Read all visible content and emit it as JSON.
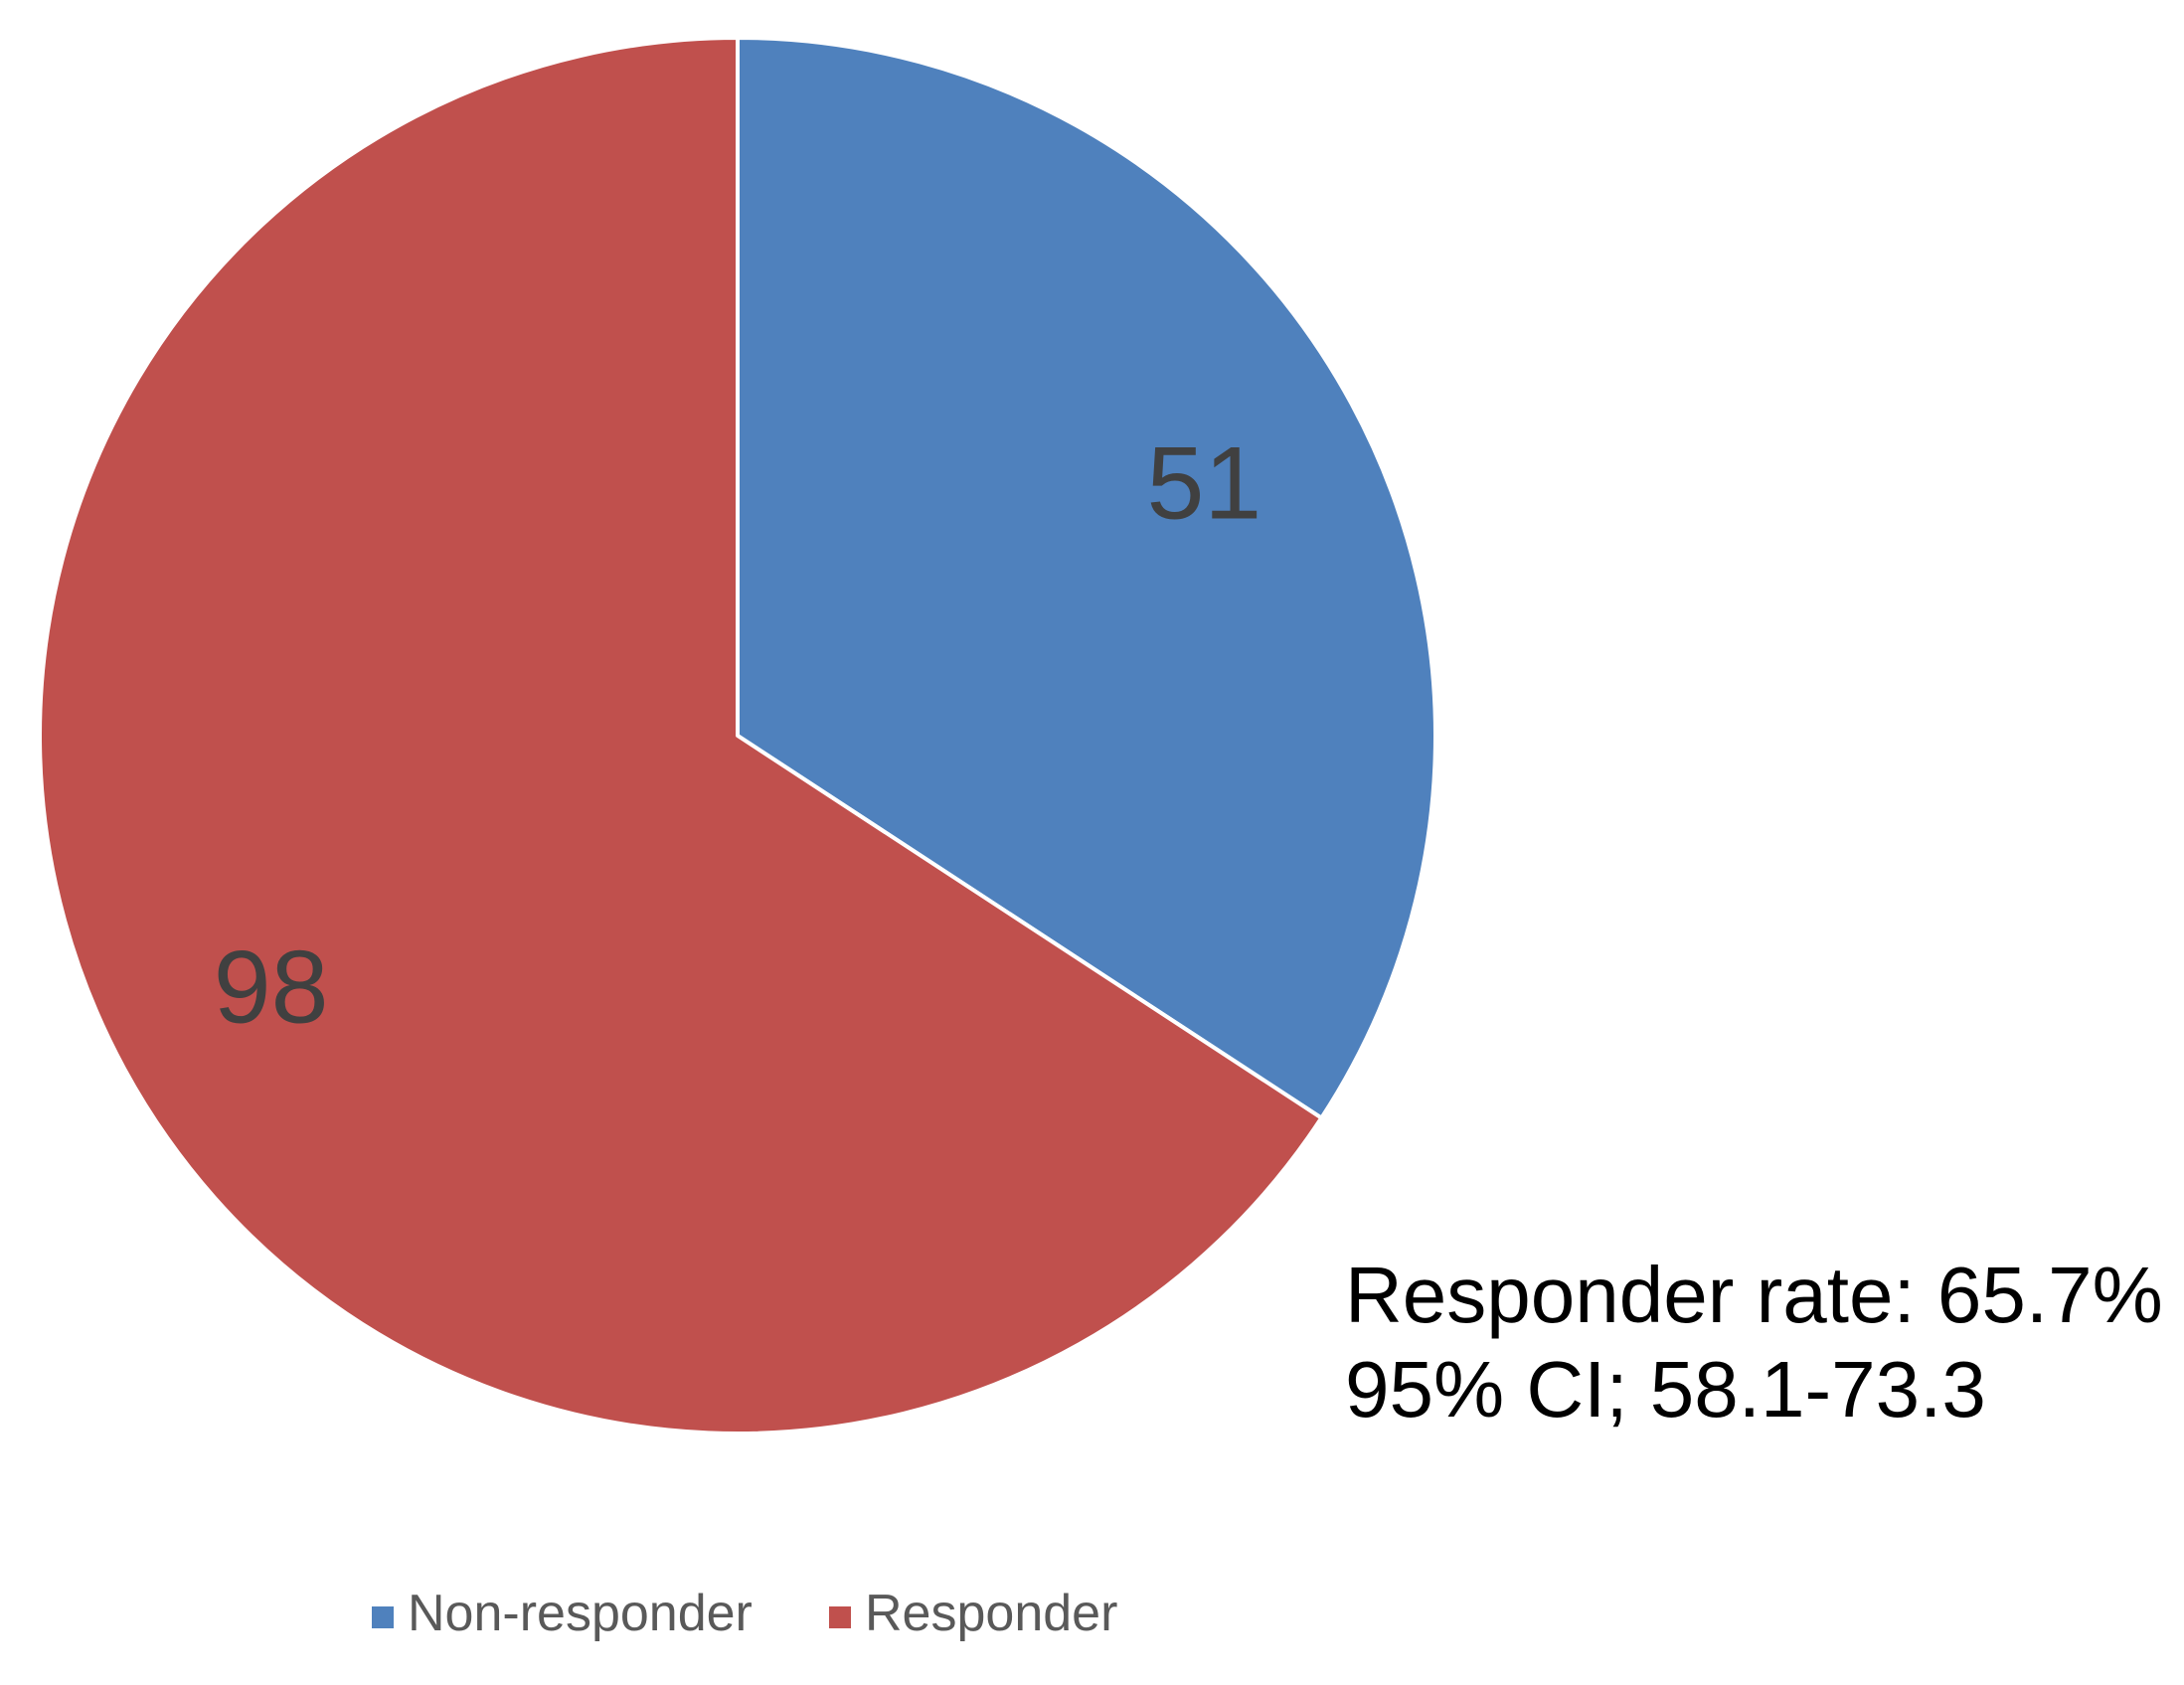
{
  "chart_data": {
    "type": "pie",
    "title": "",
    "slices": [
      {
        "label": "Non-responder",
        "value": 51,
        "color": "#4F81BD"
      },
      {
        "label": "Responder",
        "value": 98,
        "color": "#C0504D"
      }
    ],
    "start_angle": "12 o'clock",
    "direction": "clockwise",
    "data_labels": [
      "51",
      "98"
    ],
    "annotation": {
      "line1": "Responder rate: 65.7%",
      "line2": "95% CI; 58.1-73.3"
    },
    "legend": {
      "placement": "bottom",
      "entries": [
        "Non-responder",
        "Responder"
      ]
    },
    "slice_border_color": "#ffffff"
  }
}
